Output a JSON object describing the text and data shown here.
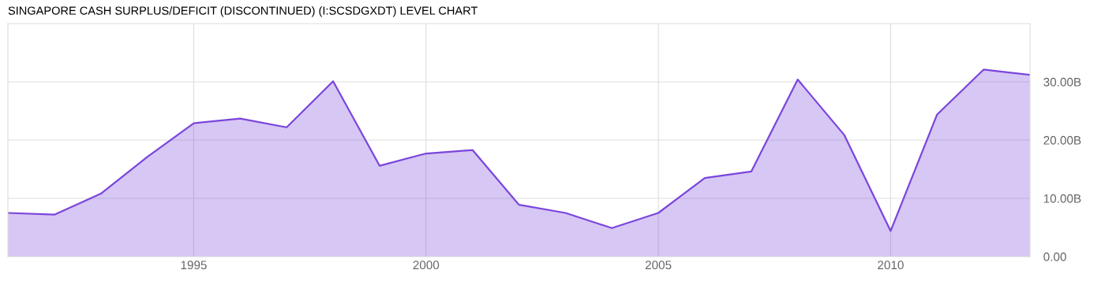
{
  "chart_data": {
    "type": "area",
    "title": "SINGAPORE CASH SURPLUS/DEFICIT (DISCONTINUED) (I:SCSDGXDT) LEVEL CHART",
    "x": [
      1991,
      1992,
      1993,
      1994,
      1995,
      1996,
      1997,
      1998,
      1999,
      2000,
      2001,
      2002,
      2003,
      2004,
      2005,
      2006,
      2007,
      2008,
      2009,
      2010,
      2011,
      2012,
      2013
    ],
    "series": [
      {
        "color": "#7b45dc",
        "values": [
          7.5,
          7.2,
          10.8,
          17.1,
          22.9,
          23.7,
          22.2,
          30.1,
          15.6,
          17.7,
          18.3,
          8.9,
          7.5,
          4.9,
          7.5,
          13.5,
          14.6,
          30.4,
          20.9,
          4.4,
          24.4,
          32.1,
          31.2
        ]
      }
    ],
    "xlim": [
      1991,
      2013
    ],
    "xticks": [
      1995,
      2000,
      2005,
      2010
    ],
    "ylim": [
      0,
      40
    ],
    "yticks": [
      {
        "value": 0,
        "label": "0.00"
      },
      {
        "value": 10,
        "label": "10.00B"
      },
      {
        "value": 20,
        "label": "20.00B"
      },
      {
        "value": 30,
        "label": "30.00B"
      }
    ],
    "grid": true,
    "legend": false
  }
}
